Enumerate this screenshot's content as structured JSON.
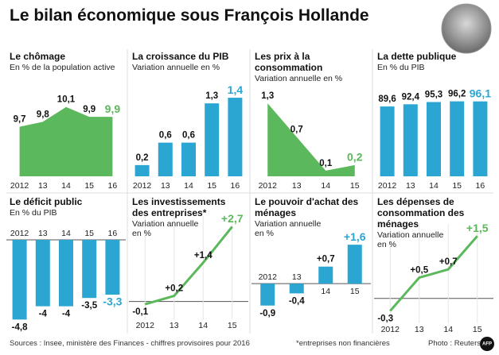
{
  "header": {
    "title": "Le bilan économique sous François Hollande"
  },
  "chart_data": [
    {
      "type": "area",
      "title": "Le chômage",
      "subtitle": "En % de la population active",
      "categories": [
        "2012",
        "13",
        "14",
        "15",
        "16"
      ],
      "values": [
        9.7,
        9.8,
        10.1,
        9.9,
        9.9
      ],
      "value_labels": [
        "9,7",
        "9,8",
        "10,1",
        "9,9",
        "9,9"
      ],
      "color": "#5cb85c",
      "highlight_color": "#5cb85c",
      "ylim": [
        8.7,
        10.4
      ]
    },
    {
      "type": "bar",
      "title": "La croissance du PIB",
      "subtitle": "Variation annuelle en %",
      "categories": [
        "2012",
        "13",
        "14",
        "15",
        "16"
      ],
      "values": [
        0.2,
        0.6,
        0.6,
        1.3,
        1.4
      ],
      "value_labels": [
        "0,2",
        "0,6",
        "0,6",
        "1,3",
        "1,4"
      ],
      "color": "#2ba6d3",
      "highlight_color": "#2ba6d3",
      "ylim": [
        0,
        1.5
      ]
    },
    {
      "type": "area",
      "title": "Les prix à la consommation",
      "subtitle": "Variation annuelle en %",
      "categories": [
        "2012",
        "13",
        "14",
        "15"
      ],
      "values": [
        1.3,
        0.7,
        0.1,
        0.2
      ],
      "value_labels": [
        "1,3",
        "0,7",
        "0,1",
        "0,2"
      ],
      "color": "#5cb85c",
      "highlight_color": "#5cb85c",
      "ylim": [
        0,
        1.5
      ]
    },
    {
      "type": "bar",
      "title": "La dette publique",
      "subtitle": "En % du PIB",
      "categories": [
        "2012",
        "13",
        "14",
        "15",
        "16"
      ],
      "values": [
        89.6,
        92.4,
        95.3,
        96.2,
        96.1
      ],
      "value_labels": [
        "89,6",
        "92,4",
        "95,3",
        "96,2",
        "96,1"
      ],
      "color": "#2ba6d3",
      "highlight_color": "#2ba6d3",
      "ylim": [
        0,
        108
      ]
    },
    {
      "type": "bar",
      "title": "Le déficit public",
      "subtitle": "En % du PIB",
      "categories": [
        "2012",
        "13",
        "14",
        "15",
        "16"
      ],
      "values": [
        -4.8,
        -4,
        -4,
        -3.5,
        -3.3
      ],
      "value_labels": [
        "-4,8",
        "-4",
        "-4",
        "-3,5",
        "-3,3"
      ],
      "color": "#2ba6d3",
      "highlight_color": "#2ba6d3",
      "ylim": [
        -5.5,
        0
      ]
    },
    {
      "type": "line",
      "title": "Les investissements des entreprises*",
      "subtitle": "Variation annuelle en %",
      "categories": [
        "2012",
        "13",
        "14",
        "15"
      ],
      "values": [
        -0.1,
        0.2,
        1.4,
        2.7
      ],
      "value_labels": [
        "-0,1",
        "+0,2",
        "+1,4",
        "+2,7"
      ],
      "color": "#5cb85c",
      "highlight_color": "#5cb85c",
      "ylim": [
        -0.5,
        2.8
      ]
    },
    {
      "type": "bar",
      "title": "Le pouvoir d'achat des ménages",
      "subtitle": "Variation annuelle en %",
      "categories": [
        "2012",
        "13",
        "14",
        "15"
      ],
      "values": [
        -0.9,
        -0.4,
        0.7,
        1.6
      ],
      "value_labels": [
        "-0,9",
        "-0,4",
        "+0,7",
        "+1,6"
      ],
      "color": "#2ba6d3",
      "highlight_color": "#2ba6d3",
      "ylim": [
        -1.3,
        1.8
      ]
    },
    {
      "type": "line",
      "title": "Les dépenses de consommation des ménages",
      "subtitle": "Variation annuelle en %",
      "categories": [
        "2012",
        "13",
        "14",
        "15"
      ],
      "values": [
        -0.3,
        0.5,
        0.7,
        1.5
      ],
      "value_labels": [
        "-0,3",
        "+0,5",
        "+0,7",
        "+1,5"
      ],
      "color": "#5cb85c",
      "highlight_color": "#5cb85c",
      "ylim": [
        -0.5,
        1.6
      ]
    }
  ],
  "footer": {
    "sources": "Sources : Insee, ministère des Finances - chiffres provisoires pour 2016",
    "footnote": "*entreprises non financières",
    "credit": "Photo : Reuters",
    "logo": "AFP"
  }
}
